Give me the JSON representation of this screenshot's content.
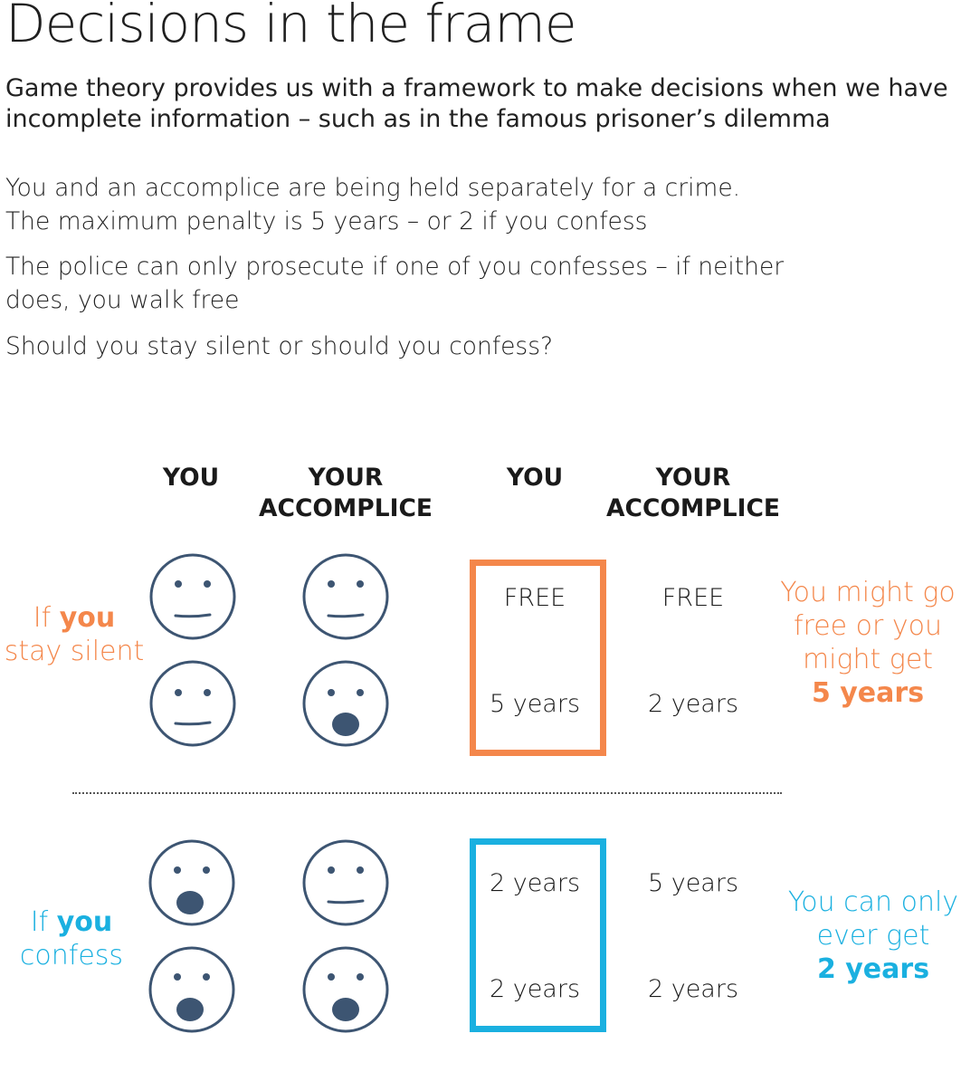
{
  "title": "Decisions in the frame",
  "subtitle": {
    "line1": "Game theory provides us with a framework to make decisions when we have",
    "line2": "incomplete information – such as in the famous prisoner’s dilemma"
  },
  "body": {
    "line1": "You and an accomplice are being held separately for a crime.",
    "line2": "The maximum penalty is 5 years – or 2 if you confess",
    "line3": "The police can only prosecute if one of you confesses – if neither",
    "line4": "does, you walk free",
    "line5": "Should you stay silent or should you confess?"
  },
  "headers": {
    "faces_you": "YOU",
    "faces_accomplice_1": "YOUR",
    "faces_accomplice_2": "ACCOMPLICE",
    "outcome_you": "YOU",
    "outcome_accomplice_1": "YOUR",
    "outcome_accomplice_2": "ACCOMPLICE"
  },
  "scenarios": [
    {
      "label_pre": "If ",
      "label_bold": "you",
      "label_line2": "stay silent",
      "accent": "#f4874b",
      "summary_lines": [
        "You might go",
        "free or you",
        "might get"
      ],
      "summary_bold": "5 years",
      "rows": [
        {
          "you_face": "neutral",
          "accomplice_face": "neutral",
          "you_outcome": "FREE",
          "accomplice_outcome": "FREE"
        },
        {
          "you_face": "neutral",
          "accomplice_face": "shocked",
          "you_outcome": "5 years",
          "accomplice_outcome": "2 years"
        }
      ]
    },
    {
      "label_pre": "If ",
      "label_bold": "you",
      "label_line2": "confess",
      "accent": "#1ab0e0",
      "summary_lines": [
        "You can only",
        "ever get"
      ],
      "summary_bold": "2 years",
      "rows": [
        {
          "you_face": "shocked",
          "accomplice_face": "neutral",
          "you_outcome": "2 years",
          "accomplice_outcome": "5 years"
        },
        {
          "you_face": "shocked",
          "accomplice_face": "shocked",
          "you_outcome": "2 years",
          "accomplice_outcome": "2 years"
        }
      ]
    }
  ],
  "face_color": "#3d5572"
}
